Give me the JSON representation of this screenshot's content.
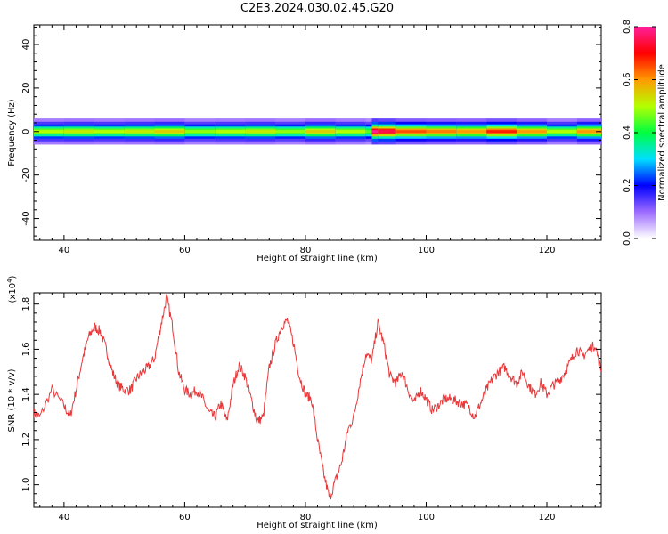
{
  "title": "C2E3.2024.030.02.45.G20",
  "chart_data": [
    {
      "type": "heatmap",
      "xlabel": "Height of straight line (km)",
      "ylabel": "Frequency (Hz)",
      "xlim": [
        35,
        129
      ],
      "ylim": [
        -50,
        49
      ],
      "x_ticks": [
        40,
        60,
        80,
        100,
        120
      ],
      "y_ticks": [
        -40,
        -20,
        0,
        20,
        40
      ],
      "band_center_hz": 0,
      "band_halfwidth_hz": 3,
      "colorbar": {
        "label": "Normalized spectral amplitude",
        "range": [
          0.0,
          0.8
        ],
        "ticks": [
          "0.0",
          "0.2",
          "0.4",
          "0.6",
          "0.8"
        ],
        "colors": [
          "#ffffff",
          "#9d6cff",
          "#0000ff",
          "#00dfff",
          "#00ff40",
          "#b4ff00",
          "#ff9a00",
          "#ff0000",
          "#ff1f9a"
        ]
      },
      "peak_amplitude_profile": {
        "x": [
          35,
          40,
          45,
          50,
          55,
          60,
          65,
          70,
          75,
          80,
          85,
          90,
          91,
          92,
          95,
          100,
          105,
          110,
          115,
          120,
          125,
          129
        ],
        "amplitude": [
          0.5,
          0.52,
          0.5,
          0.52,
          0.55,
          0.48,
          0.5,
          0.52,
          0.48,
          0.55,
          0.5,
          0.45,
          0.8,
          0.75,
          0.65,
          0.62,
          0.6,
          0.68,
          0.6,
          0.5,
          0.6,
          0.7
        ]
      }
    },
    {
      "type": "line",
      "xlabel": "Height of straight line (km)",
      "ylabel": "SNR (10 * v/v)",
      "y_scale_label": "(x10",
      "y_scale_exp": "4",
      "y_scale_close": ")",
      "xlim": [
        35,
        129
      ],
      "ylim": [
        0.9,
        1.85
      ],
      "x_ticks": [
        40,
        60,
        80,
        100,
        120
      ],
      "y_ticks": [
        "1.0",
        "1.2",
        "1.4",
        "1.6",
        "1.8"
      ],
      "color": "#e8383a",
      "series": [
        {
          "x": [
            35,
            36,
            38,
            40,
            41,
            42,
            43,
            44,
            45,
            46,
            47,
            48,
            49,
            50,
            51,
            52,
            53,
            54,
            55,
            56,
            57,
            58,
            59,
            60,
            61,
            62,
            63,
            64,
            65,
            66,
            67,
            68,
            69,
            70,
            71,
            72,
            73,
            74,
            75,
            76,
            77,
            78,
            79,
            80,
            81,
            82,
            83,
            84,
            85,
            86,
            87,
            88,
            89,
            90,
            91,
            92,
            93,
            94,
            95,
            96,
            97,
            98,
            99,
            100,
            101,
            102,
            103,
            104,
            105,
            106,
            107,
            108,
            109,
            110,
            111,
            112,
            113,
            114,
            115,
            116,
            117,
            118,
            119,
            120,
            121,
            122,
            123,
            124,
            125,
            126,
            127,
            128,
            129
          ],
          "values": [
            1.32,
            1.3,
            1.42,
            1.35,
            1.3,
            1.42,
            1.55,
            1.65,
            1.7,
            1.68,
            1.6,
            1.5,
            1.44,
            1.42,
            1.42,
            1.47,
            1.5,
            1.52,
            1.56,
            1.7,
            1.83,
            1.7,
            1.5,
            1.42,
            1.4,
            1.42,
            1.38,
            1.32,
            1.3,
            1.36,
            1.28,
            1.44,
            1.53,
            1.48,
            1.38,
            1.28,
            1.3,
            1.52,
            1.62,
            1.7,
            1.73,
            1.63,
            1.48,
            1.4,
            1.38,
            1.2,
            1.05,
            0.94,
            1.02,
            1.1,
            1.24,
            1.3,
            1.45,
            1.58,
            1.55,
            1.72,
            1.62,
            1.48,
            1.45,
            1.5,
            1.42,
            1.36,
            1.42,
            1.38,
            1.33,
            1.35,
            1.38,
            1.38,
            1.37,
            1.36,
            1.35,
            1.3,
            1.36,
            1.42,
            1.47,
            1.5,
            1.52,
            1.48,
            1.45,
            1.5,
            1.44,
            1.4,
            1.45,
            1.4,
            1.44,
            1.46,
            1.5,
            1.55,
            1.6,
            1.57,
            1.6,
            1.62,
            1.5
          ]
        }
      ]
    }
  ]
}
